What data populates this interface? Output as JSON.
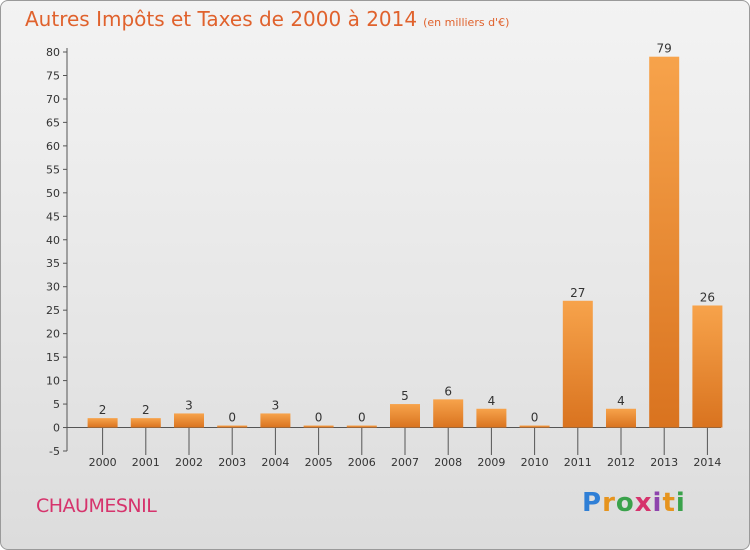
{
  "title": "Autres Impôts et Taxes de 2000 à 2014",
  "subtitle": "(en milliers d'€)",
  "commune": "CHAUMESNIL",
  "logo": "Proxiti",
  "colors": {
    "bar_light": "#f7a34b",
    "bar_dark": "#d9731f",
    "title": "#e0622d",
    "commune": "#d6336c"
  },
  "chart_data": {
    "type": "bar",
    "categories": [
      "2000",
      "2001",
      "2002",
      "2003",
      "2004",
      "2005",
      "2006",
      "2007",
      "2008",
      "2009",
      "2010",
      "2011",
      "2012",
      "2013",
      "2014"
    ],
    "values": [
      2,
      2,
      3,
      0,
      3,
      0,
      0,
      5,
      6,
      4,
      0,
      27,
      4,
      79,
      26
    ],
    "ylim": [
      -5,
      80
    ],
    "yticks": [
      -5,
      0,
      5,
      10,
      15,
      20,
      25,
      30,
      35,
      40,
      45,
      50,
      55,
      60,
      65,
      70,
      75,
      80
    ],
    "grid": false,
    "xlabel": "",
    "ylabel": ""
  }
}
